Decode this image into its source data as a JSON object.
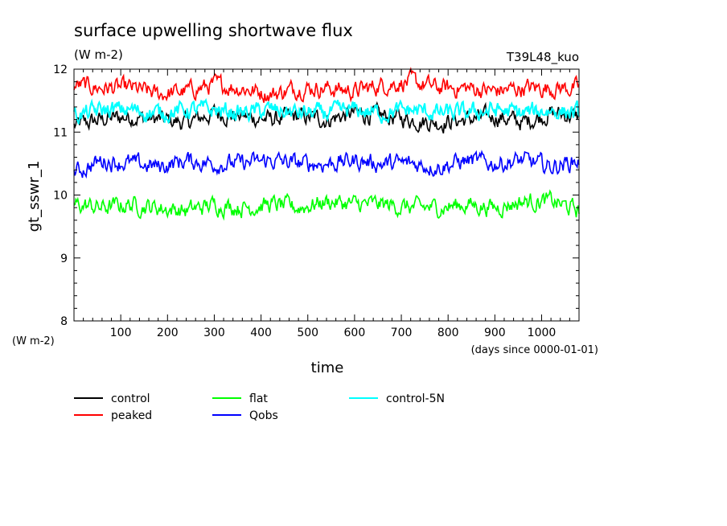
{
  "chart_data": {
    "type": "line",
    "title": "surface upwelling shortwave flux",
    "units": "(W m-2)",
    "run_label": "T39L48_kuo",
    "ylabel": "gt_sswr_1",
    "y_unit_label": "(W m-2)",
    "xlabel": "time",
    "x_unit_label": "(days since 0000-01-01)",
    "xlim": [
      0,
      1080
    ],
    "ylim": [
      8,
      12
    ],
    "x_ticks": [
      100,
      200,
      300,
      400,
      500,
      600,
      700,
      800,
      900,
      1000
    ],
    "y_ticks": [
      8,
      9,
      10,
      11,
      12
    ],
    "legend_position": "below plot",
    "series": [
      {
        "name": "control",
        "color": "#000000",
        "x": [
          0,
          60,
          120,
          180,
          240,
          300,
          360,
          420,
          480,
          540,
          600,
          660,
          720,
          780,
          840,
          900,
          960,
          1020,
          1080
        ],
        "values": [
          11.1,
          11.2,
          11.25,
          11.2,
          11.15,
          11.3,
          11.25,
          11.2,
          11.25,
          11.2,
          11.3,
          11.25,
          11.2,
          11.15,
          11.2,
          11.25,
          11.15,
          11.3,
          11.25
        ]
      },
      {
        "name": "peaked",
        "color": "#ff0000",
        "x": [
          0,
          60,
          120,
          180,
          240,
          300,
          360,
          420,
          480,
          540,
          600,
          660,
          720,
          780,
          840,
          900,
          960,
          1020,
          1080
        ],
        "values": [
          11.75,
          11.7,
          11.7,
          11.6,
          11.65,
          11.75,
          11.7,
          11.6,
          11.7,
          11.7,
          11.65,
          11.75,
          11.8,
          11.7,
          11.7,
          11.65,
          11.7,
          11.7,
          11.7
        ]
      },
      {
        "name": "flat",
        "color": "#00ff00",
        "x": [
          0,
          60,
          120,
          180,
          240,
          300,
          360,
          420,
          480,
          540,
          600,
          660,
          720,
          780,
          840,
          900,
          960,
          1020,
          1080
        ],
        "values": [
          9.85,
          9.8,
          9.85,
          9.8,
          9.75,
          9.85,
          9.8,
          9.85,
          9.8,
          9.9,
          9.85,
          9.85,
          9.8,
          9.8,
          9.85,
          9.8,
          9.9,
          9.9,
          9.75
        ]
      },
      {
        "name": "Qobs",
        "color": "#0000ff",
        "x": [
          0,
          60,
          120,
          180,
          240,
          300,
          360,
          420,
          480,
          540,
          600,
          660,
          720,
          780,
          840,
          900,
          960,
          1020,
          1080
        ],
        "values": [
          10.35,
          10.55,
          10.5,
          10.45,
          10.55,
          10.5,
          10.5,
          10.55,
          10.5,
          10.5,
          10.55,
          10.5,
          10.5,
          10.45,
          10.55,
          10.5,
          10.55,
          10.45,
          10.55
        ]
      },
      {
        "name": "control-5N",
        "color": "#00ffff",
        "x": [
          0,
          60,
          120,
          180,
          240,
          300,
          360,
          420,
          480,
          540,
          600,
          660,
          720,
          780,
          840,
          900,
          960,
          1020,
          1080
        ],
        "values": [
          11.25,
          11.35,
          11.35,
          11.3,
          11.35,
          11.35,
          11.3,
          11.35,
          11.3,
          11.3,
          11.35,
          11.3,
          11.35,
          11.3,
          11.3,
          11.35,
          11.3,
          11.35,
          11.3
        ]
      }
    ]
  }
}
